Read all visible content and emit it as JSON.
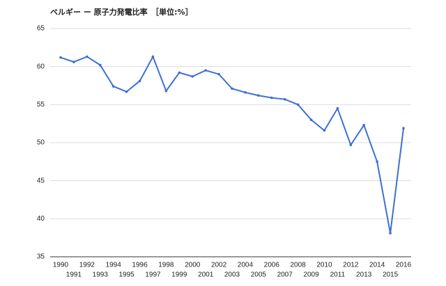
{
  "chart_data": {
    "type": "line",
    "title": "ベルギー ー 原子力発電比率　［単位:%］",
    "x": [
      1990,
      1991,
      1992,
      1993,
      1994,
      1995,
      1996,
      1997,
      1998,
      1999,
      2000,
      2001,
      2002,
      2003,
      2004,
      2005,
      2006,
      2007,
      2008,
      2009,
      2010,
      2011,
      2012,
      2013,
      2014,
      2015,
      2016
    ],
    "values": [
      61.2,
      60.6,
      61.3,
      60.2,
      57.4,
      56.7,
      58.1,
      61.3,
      56.8,
      59.2,
      58.7,
      59.5,
      59.0,
      57.1,
      56.6,
      56.2,
      55.9,
      55.7,
      55.0,
      53.0,
      51.6,
      54.5,
      49.7,
      52.3,
      47.5,
      38.1,
      51.9
    ],
    "color": "#3d6fd1",
    "xlim": [
      1990,
      2016
    ],
    "ylim": [
      35,
      65
    ],
    "yticks": [
      35,
      40,
      45,
      50,
      55,
      60,
      65
    ],
    "grid": true
  }
}
